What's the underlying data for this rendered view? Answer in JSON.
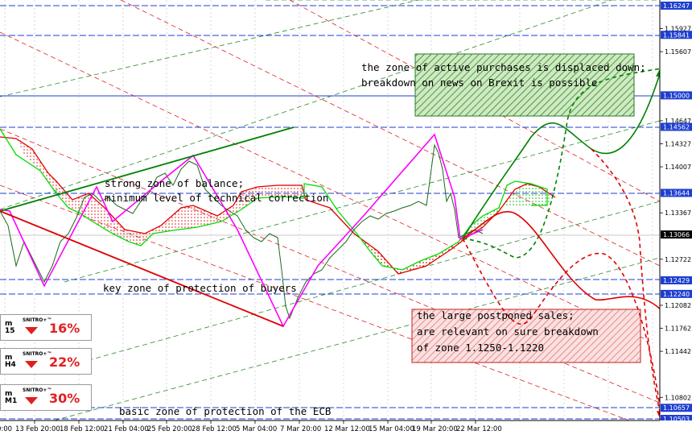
{
  "chart_data": {
    "type": "line",
    "symbol_context": "EURUSD H4 forecast chart (Ichimoku)",
    "y_ticks": [
      "1.15927",
      "1.15607",
      "1.14647",
      "1.14327",
      "1.14007",
      "1.13367",
      "1.12722",
      "1.12082",
      "1.11762",
      "1.11442",
      "1.10802",
      "1.10502"
    ],
    "horizontal_levels": [
      {
        "value": "1.16247",
        "color": "#1e3fd0",
        "style": "dashed"
      },
      {
        "value": "1.15841",
        "color": "#1e3fd0",
        "style": "dashed"
      },
      {
        "value": "1.15000",
        "color": "#1e3fd0",
        "style": "solid"
      },
      {
        "value": "1.14562",
        "color": "#1e3fd0",
        "style": "dashed"
      },
      {
        "value": "1.13644",
        "color": "#1e3fd0",
        "style": "dashed"
      },
      {
        "value": "1.13066",
        "color": "#c8c8c8",
        "style": "current"
      },
      {
        "value": "1.12429",
        "color": "#1e3fd0",
        "style": "dashed"
      },
      {
        "value": "1.12240",
        "color": "#1e3fd0",
        "style": "dashed"
      },
      {
        "value": "1.10657",
        "color": "#1e3fd0",
        "style": "dashed"
      },
      {
        "value": "1.10503",
        "color": "#1e3fd0",
        "style": "dashed"
      }
    ],
    "x_labels": [
      "13 Feb 20:00",
      "18 Feb 12:00",
      "21 Feb 04:00",
      "25 Feb 20:00",
      "28 Feb 12:00",
      "5 Mar 04:00",
      "7 Mar 20:00",
      "12 Mar 12:00",
      "15 Mar 04:00",
      "19 Mar 20:00",
      "22 Mar 12:00"
    ],
    "x_first_fragment": "0:00",
    "annotations": [
      {
        "lines": [
          "the zone of active purchases is displaced down;",
          "breakdown on news on Brexit is possible"
        ]
      },
      {
        "lines": [
          "strong zone of balance;",
          "minimum level of technical correction"
        ]
      },
      {
        "lines": [
          "key zone of protection of buyers"
        ]
      },
      {
        "lines": [
          "the large postponed sales;",
          "are relevant on sure breakdown",
          "of zone 1.1250-1.1220"
        ]
      },
      {
        "lines": [
          "basic zone of protection of the ECB"
        ]
      }
    ],
    "series_colors": {
      "price": "#008000",
      "zigzag": "#ff00ff",
      "kumo_line_a": "#00cc00",
      "kumo_line_b": "#e00000",
      "channel_up": "#008000",
      "channel_down": "#e00000",
      "forecast_bull": "#008000",
      "forecast_bear": "#e00000"
    }
  },
  "widgets": [
    {
      "timeframe": "M15",
      "tf_top": "m",
      "tf_bottom": "15",
      "brand": "SNITRO+™",
      "direction": "down",
      "percent": "16%"
    },
    {
      "timeframe": "H4",
      "tf_top": "m",
      "tf_bottom": "H4",
      "brand": "SNITRO+™",
      "direction": "down",
      "percent": "22%"
    },
    {
      "timeframe": "M1",
      "tf_top": "m",
      "tf_bottom": "M1",
      "brand": "SNITRO+™",
      "direction": "down",
      "percent": "30%"
    }
  ]
}
